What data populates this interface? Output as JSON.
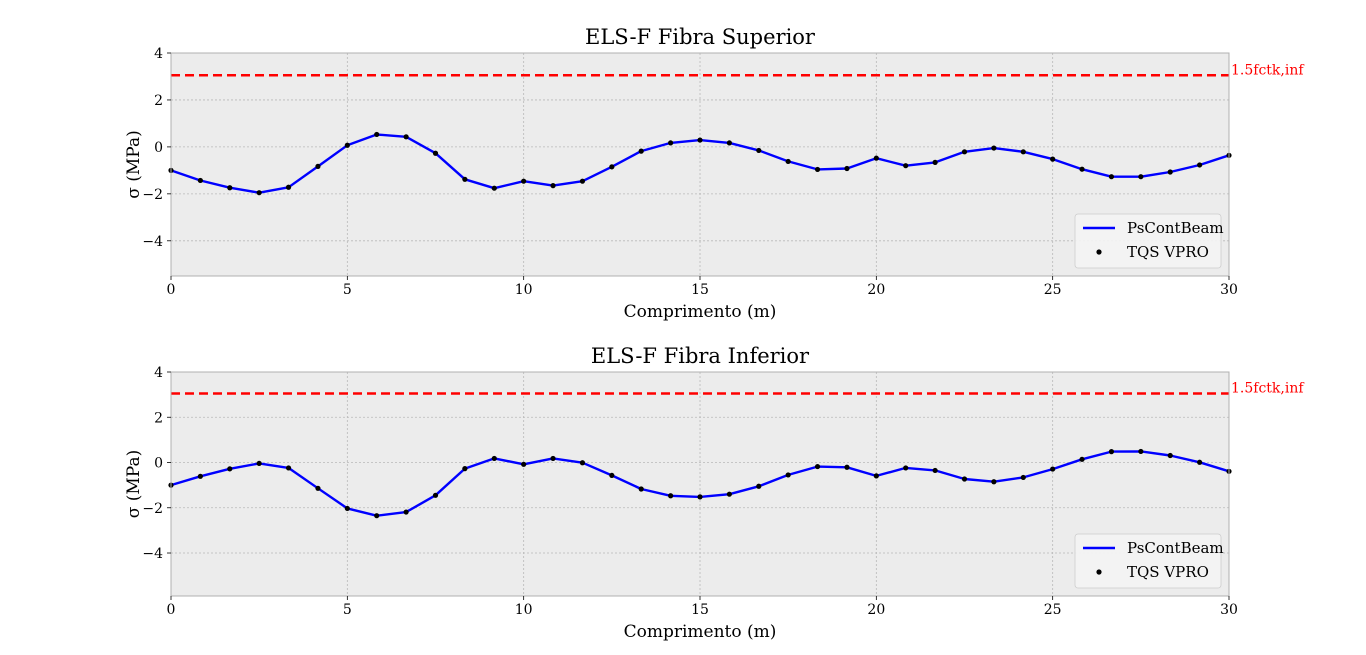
{
  "chart_data": [
    {
      "type": "line",
      "title": "ELS-F Fibra Superior",
      "xlabel": "Comprimento (m)",
      "ylabel": "σ (MPa)",
      "xlim": [
        0,
        30
      ],
      "ylim": [
        -5.5,
        4
      ],
      "xticks": [
        "0",
        "5",
        "10",
        "15",
        "20",
        "25",
        "30"
      ],
      "yticks": [
        "4",
        "2",
        "0",
        "−2",
        "−4"
      ],
      "grid": true,
      "legend_position": "lower-right",
      "limit_line": {
        "label": "1.5fctk,inf",
        "value": 3.05,
        "color": "#ff0000"
      },
      "series": [
        {
          "name": "PsContBeam",
          "color": "#0000ff",
          "x": [
            0,
            0.833,
            1.667,
            2.5,
            3.333,
            4.167,
            5,
            5.833,
            6.667,
            7.5,
            8.333,
            9.167,
            10,
            10.833,
            11.667,
            12.5,
            13.333,
            14.167,
            15,
            15.833,
            16.667,
            17.5,
            18.333,
            19.167,
            20,
            20.833,
            21.667,
            22.5,
            23.333,
            24.167,
            25,
            25.833,
            26.667,
            27.5,
            28.333,
            29.167,
            30
          ],
          "y": [
            -1.0,
            -1.43,
            -1.74,
            -1.95,
            -1.72,
            -0.83,
            0.07,
            0.53,
            0.43,
            -0.27,
            -1.38,
            -1.76,
            -1.46,
            -1.65,
            -1.46,
            -0.85,
            -0.18,
            0.17,
            0.29,
            0.17,
            -0.15,
            -0.62,
            -0.96,
            -0.92,
            -0.48,
            -0.8,
            -0.66,
            -0.21,
            -0.05,
            -0.21,
            -0.52,
            -0.95,
            -1.27,
            -1.27,
            -1.07,
            -0.77,
            -0.36
          ]
        },
        {
          "name": "TQS VPRO",
          "color": "#000000",
          "x": [
            0,
            0.833,
            1.667,
            2.5,
            3.333,
            4.167,
            5,
            5.833,
            6.667,
            7.5,
            8.333,
            9.167,
            10,
            10.833,
            11.667,
            12.5,
            13.333,
            14.167,
            15,
            15.833,
            16.667,
            17.5,
            18.333,
            19.167,
            20,
            20.833,
            21.667,
            22.5,
            23.333,
            24.167,
            25,
            25.833,
            26.667,
            27.5,
            28.333,
            29.167,
            30
          ],
          "y": [
            -1.0,
            -1.43,
            -1.74,
            -1.95,
            -1.72,
            -0.83,
            0.07,
            0.53,
            0.43,
            -0.27,
            -1.38,
            -1.76,
            -1.46,
            -1.65,
            -1.46,
            -0.85,
            -0.18,
            0.17,
            0.29,
            0.17,
            -0.15,
            -0.62,
            -0.96,
            -0.92,
            -0.48,
            -0.8,
            -0.66,
            -0.21,
            -0.05,
            -0.21,
            -0.52,
            -0.95,
            -1.27,
            -1.27,
            -1.07,
            -0.77,
            -0.36
          ]
        }
      ]
    },
    {
      "type": "line",
      "title": "ELS-F Fibra Inferior",
      "xlabel": "Comprimento (m)",
      "ylabel": "σ (MPa)",
      "xlim": [
        0,
        30
      ],
      "ylim": [
        -5.9,
        4
      ],
      "xticks": [
        "0",
        "5",
        "10",
        "15",
        "20",
        "25",
        "30"
      ],
      "yticks": [
        "4",
        "2",
        "0",
        "−2",
        "−4"
      ],
      "grid": true,
      "legend_position": "lower-right",
      "limit_line": {
        "label": "1.5fctk,inf",
        "value": 3.05,
        "color": "#ff0000"
      },
      "series": [
        {
          "name": "PsContBeam",
          "color": "#0000ff",
          "x": [
            0,
            0.833,
            1.667,
            2.5,
            3.333,
            4.167,
            5,
            5.833,
            6.667,
            7.5,
            8.333,
            9.167,
            10,
            10.833,
            11.667,
            12.5,
            13.333,
            14.167,
            15,
            15.833,
            16.667,
            17.5,
            18.333,
            19.167,
            20,
            20.833,
            21.667,
            22.5,
            23.333,
            24.167,
            25,
            25.833,
            26.667,
            27.5,
            28.333,
            29.167,
            30
          ],
          "y": [
            -1.0,
            -0.61,
            -0.28,
            -0.04,
            -0.24,
            -1.14,
            -2.03,
            -2.35,
            -2.19,
            -1.45,
            -0.27,
            0.18,
            -0.08,
            0.18,
            -0.01,
            -0.57,
            -1.17,
            -1.47,
            -1.52,
            -1.4,
            -1.05,
            -0.55,
            -0.18,
            -0.21,
            -0.59,
            -0.24,
            -0.35,
            -0.73,
            -0.85,
            -0.66,
            -0.29,
            0.14,
            0.48,
            0.49,
            0.31,
            0.01,
            -0.39
          ]
        },
        {
          "name": "TQS VPRO",
          "color": "#000000",
          "x": [
            0,
            0.833,
            1.667,
            2.5,
            3.333,
            4.167,
            5,
            5.833,
            6.667,
            7.5,
            8.333,
            9.167,
            10,
            10.833,
            11.667,
            12.5,
            13.333,
            14.167,
            15,
            15.833,
            16.667,
            17.5,
            18.333,
            19.167,
            20,
            20.833,
            21.667,
            22.5,
            23.333,
            24.167,
            25,
            25.833,
            26.667,
            27.5,
            28.333,
            29.167,
            30
          ],
          "y": [
            -1.0,
            -0.61,
            -0.28,
            -0.04,
            -0.24,
            -1.14,
            -2.03,
            -2.35,
            -2.19,
            -1.45,
            -0.27,
            0.18,
            -0.08,
            0.18,
            -0.01,
            -0.57,
            -1.17,
            -1.47,
            -1.52,
            -1.4,
            -1.05,
            -0.55,
            -0.18,
            -0.21,
            -0.59,
            -0.24,
            -0.35,
            -0.73,
            -0.85,
            -0.66,
            -0.29,
            0.14,
            0.48,
            0.49,
            0.31,
            0.01,
            -0.39
          ]
        }
      ]
    }
  ]
}
